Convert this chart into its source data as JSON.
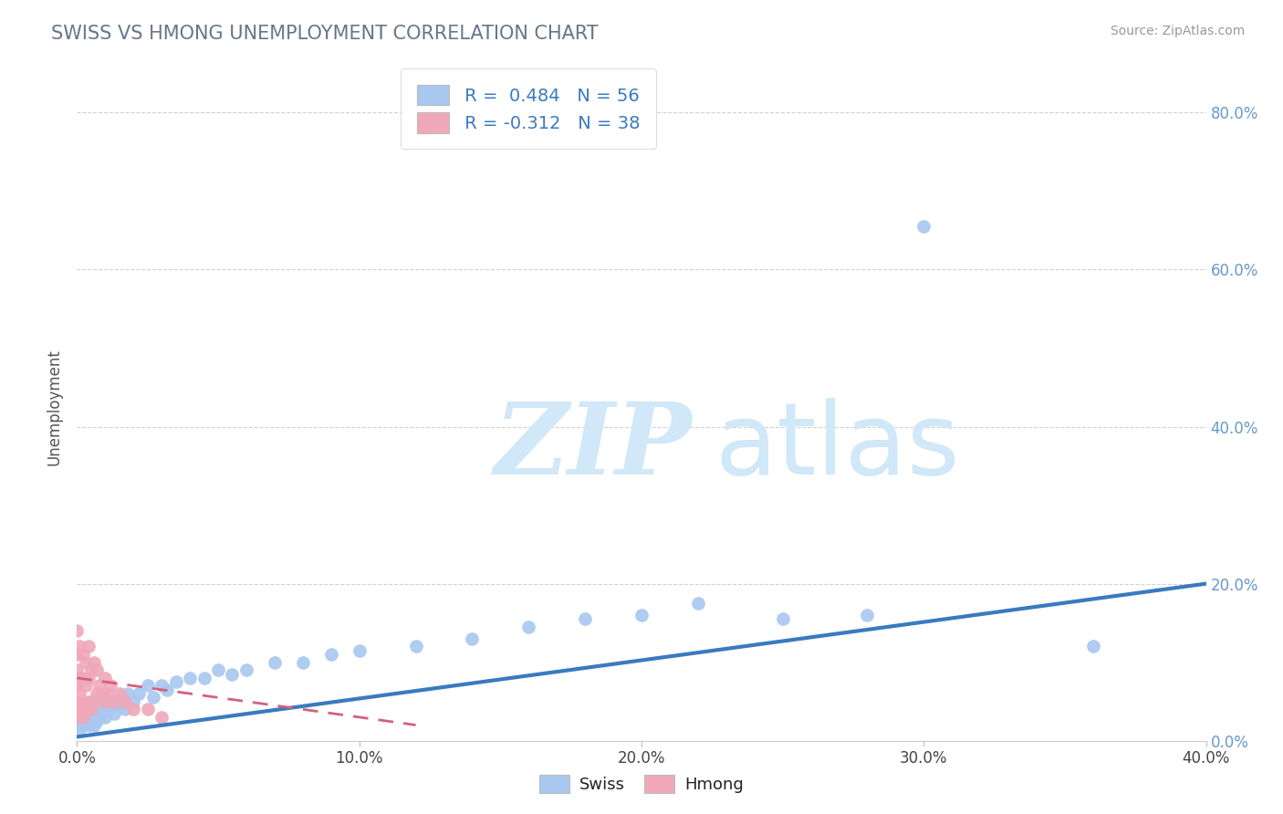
{
  "title": "SWISS VS HMONG UNEMPLOYMENT CORRELATION CHART",
  "source": "Source: ZipAtlas.com",
  "xlim": [
    0,
    0.4
  ],
  "ylim": [
    0,
    0.85
  ],
  "legend_swiss_label": "Swiss",
  "legend_hmong_label": "Hmong",
  "swiss_R": 0.484,
  "swiss_N": 56,
  "hmong_R": -0.312,
  "hmong_N": 38,
  "swiss_color": "#a8c8f0",
  "hmong_color": "#f0a8b8",
  "swiss_line_color": "#3a7abf",
  "hmong_line_color": "#d46080",
  "watermark_color": "#d0e8f8",
  "swiss_scatter_x": [
    0.0,
    0.0,
    0.001,
    0.001,
    0.002,
    0.002,
    0.003,
    0.003,
    0.004,
    0.004,
    0.005,
    0.005,
    0.006,
    0.006,
    0.007,
    0.007,
    0.008,
    0.008,
    0.009,
    0.009,
    0.01,
    0.01,
    0.011,
    0.012,
    0.013,
    0.014,
    0.015,
    0.016,
    0.017,
    0.018,
    0.02,
    0.022,
    0.025,
    0.027,
    0.03,
    0.032,
    0.035,
    0.04,
    0.045,
    0.05,
    0.055,
    0.06,
    0.07,
    0.08,
    0.09,
    0.1,
    0.12,
    0.14,
    0.16,
    0.18,
    0.2,
    0.22,
    0.25,
    0.28,
    0.3,
    0.36
  ],
  "swiss_scatter_y": [
    0.02,
    0.04,
    0.015,
    0.03,
    0.02,
    0.035,
    0.025,
    0.04,
    0.02,
    0.045,
    0.03,
    0.05,
    0.02,
    0.04,
    0.025,
    0.05,
    0.03,
    0.04,
    0.035,
    0.055,
    0.03,
    0.045,
    0.04,
    0.05,
    0.035,
    0.05,
    0.045,
    0.055,
    0.04,
    0.06,
    0.05,
    0.06,
    0.07,
    0.055,
    0.07,
    0.065,
    0.075,
    0.08,
    0.08,
    0.09,
    0.085,
    0.09,
    0.1,
    0.1,
    0.11,
    0.115,
    0.12,
    0.13,
    0.145,
    0.155,
    0.16,
    0.175,
    0.155,
    0.16,
    0.655,
    0.12
  ],
  "hmong_scatter_x": [
    0.0,
    0.0,
    0.0,
    0.0,
    0.0,
    0.0,
    0.001,
    0.001,
    0.001,
    0.001,
    0.002,
    0.002,
    0.002,
    0.002,
    0.003,
    0.003,
    0.003,
    0.004,
    0.004,
    0.004,
    0.005,
    0.005,
    0.006,
    0.006,
    0.007,
    0.007,
    0.008,
    0.009,
    0.01,
    0.01,
    0.011,
    0.012,
    0.013,
    0.015,
    0.017,
    0.02,
    0.025,
    0.03
  ],
  "hmong_scatter_y": [
    0.03,
    0.05,
    0.07,
    0.09,
    0.11,
    0.14,
    0.04,
    0.06,
    0.08,
    0.12,
    0.03,
    0.05,
    0.08,
    0.11,
    0.04,
    0.07,
    0.1,
    0.05,
    0.08,
    0.12,
    0.04,
    0.09,
    0.05,
    0.1,
    0.06,
    0.09,
    0.07,
    0.06,
    0.05,
    0.08,
    0.06,
    0.07,
    0.05,
    0.06,
    0.05,
    0.04,
    0.04,
    0.03
  ],
  "swiss_trend_y_at_0": 0.005,
  "swiss_trend_y_at_40": 0.2,
  "hmong_trend_y_at_0": 0.08,
  "hmong_trend_y_at_12": 0.02,
  "hmong_trend_x_end": 0.12,
  "ytick_vals": [
    0.0,
    0.2,
    0.4,
    0.6,
    0.8
  ],
  "ytick_labels": [
    "0.0%",
    "20.0%",
    "40.0%",
    "60.0%",
    "80.0%"
  ],
  "xtick_vals": [
    0.0,
    0.1,
    0.2,
    0.3,
    0.4
  ],
  "xtick_labels": [
    "0.0%",
    "10.0%",
    "20.0%",
    "30.0%",
    "40.0%"
  ]
}
